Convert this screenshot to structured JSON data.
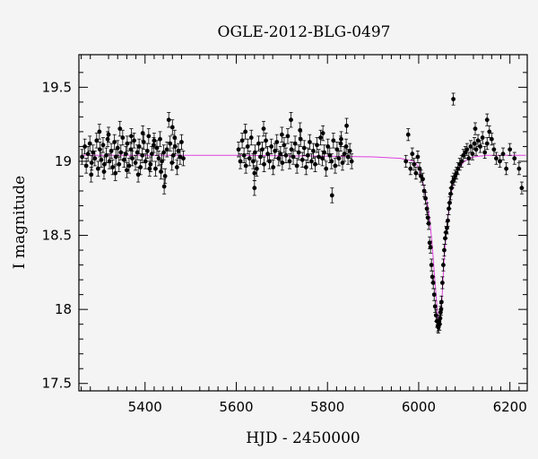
{
  "chart_data": {
    "type": "scatter",
    "title": "OGLE-2012-BLG-0497",
    "xlabel": "HJD - 2450000",
    "ylabel": "I magnitude",
    "xlim": [
      5255,
      6238
    ],
    "ylim": [
      19.72,
      17.45
    ],
    "y_inverted": true,
    "x_ticks": [
      5400,
      5600,
      5800,
      6000,
      6200
    ],
    "y_ticks": [
      17.5,
      18,
      18.5,
      19,
      19.5
    ],
    "y_tick_labels": [
      "17.5",
      "18",
      "18.5",
      "19",
      "19.5"
    ],
    "grid": false,
    "colors": {
      "points": "#000000",
      "model": "#e040e0",
      "background": "#f4f4f4"
    },
    "model": {
      "name": "",
      "baseline": 19.04,
      "x": [
        5260,
        5400,
        5600,
        5800,
        5900,
        5960,
        5990,
        6000,
        6010,
        6020,
        6025,
        6030,
        6035,
        6040,
        6043,
        6046,
        6048,
        6050,
        6053,
        6056,
        6060,
        6065,
        6070,
        6075,
        6080,
        6090,
        6100,
        6120,
        6150,
        6200,
        6235
      ],
      "y": [
        19.04,
        19.04,
        19.04,
        19.035,
        19.03,
        19.02,
        19.0,
        18.96,
        18.85,
        18.7,
        18.58,
        18.42,
        18.22,
        18.02,
        17.93,
        17.9,
        17.94,
        18.02,
        18.18,
        18.35,
        18.5,
        18.65,
        18.76,
        18.84,
        18.9,
        18.96,
        19.0,
        19.03,
        19.04,
        19.04,
        19.04
      ]
    },
    "series": [
      {
        "x": [
          5262,
          5268,
          5271,
          5275,
          5279,
          5283,
          5286,
          5290,
          5294,
          5297,
          5301,
          5304,
          5308,
          5311,
          5315,
          5318,
          5322,
          5326,
          5329,
          5333,
          5336,
          5340,
          5343,
          5347,
          5351,
          5354,
          5358,
          5361,
          5365,
          5369,
          5372,
          5376,
          5379,
          5383,
          5387,
          5390,
          5394,
          5397,
          5401,
          5405,
          5408,
          5412,
          5415,
          5419,
          5423,
          5426,
          5430,
          5433,
          5437,
          5441,
          5444,
          5448,
          5452,
          5455,
          5459,
          5462,
          5466,
          5470,
          5473,
          5477,
          5480,
          5484,
          5300,
          5320,
          5345,
          5370,
          5395,
          5420,
          5442,
          5465,
          5310,
          5335,
          5360,
          5385,
          5410,
          5435,
          5460,
          5282
        ],
        "y": [
          19.03,
          19.1,
          18.97,
          19.05,
          19.12,
          18.99,
          19.06,
          19.02,
          19.14,
          18.95,
          19.08,
          19.01,
          19.11,
          18.98,
          19.04,
          19.15,
          19.0,
          19.07,
          18.96,
          19.13,
          19.03,
          19.09,
          18.98,
          19.06,
          19.16,
          19.01,
          19.05,
          19.12,
          18.97,
          19.08,
          19.02,
          19.14,
          18.99,
          19.06,
          19.1,
          18.96,
          19.04,
          19.13,
          19.0,
          19.07,
          19.17,
          18.98,
          19.05,
          19.11,
          18.95,
          19.09,
          19.02,
          19.15,
          19.0,
          19.06,
          18.9,
          19.08,
          19.28,
          19.12,
          18.99,
          19.04,
          19.1,
          18.96,
          19.07,
          19.03,
          19.13,
          19.02,
          19.2,
          19.18,
          19.22,
          19.17,
          19.19,
          19.14,
          18.83,
          19.16,
          18.93,
          18.92,
          18.94,
          18.91,
          18.95,
          18.93,
          19.23,
          18.91
        ],
        "yerr": 0.05
      },
      {
        "x": [
          5605,
          5609,
          5613,
          5617,
          5621,
          5625,
          5629,
          5633,
          5637,
          5641,
          5645,
          5649,
          5653,
          5657,
          5661,
          5665,
          5669,
          5673,
          5677,
          5681,
          5685,
          5689,
          5693,
          5697,
          5701,
          5705,
          5709,
          5713,
          5717,
          5721,
          5725,
          5729,
          5733,
          5737,
          5741,
          5745,
          5749,
          5753,
          5757,
          5761,
          5765,
          5769,
          5773,
          5777,
          5781,
          5785,
          5789,
          5793,
          5797,
          5801,
          5805,
          5809,
          5813,
          5817,
          5821,
          5825,
          5829,
          5833,
          5837,
          5841,
          5845,
          5849,
          5853,
          5620,
          5660,
          5700,
          5740,
          5790,
          5830,
          5640,
          5720,
          5810,
          5640,
          5842
        ],
        "y": [
          19.08,
          19.0,
          19.14,
          19.04,
          18.97,
          19.1,
          19.02,
          19.16,
          19.0,
          19.06,
          18.95,
          19.12,
          19.03,
          19.08,
          18.98,
          19.14,
          19.05,
          19.0,
          19.1,
          18.96,
          19.07,
          19.13,
          19.02,
          19.05,
          18.99,
          19.11,
          19.04,
          19.17,
          19.0,
          19.08,
          19.03,
          19.12,
          18.97,
          19.06,
          19.15,
          19.01,
          19.09,
          18.96,
          19.04,
          19.13,
          19.0,
          19.07,
          18.98,
          19.11,
          19.03,
          19.16,
          19.02,
          19.06,
          18.95,
          19.1,
          19.04,
          19.0,
          19.14,
          18.97,
          19.08,
          19.02,
          19.12,
          18.99,
          19.05,
          19.1,
          19.03,
          19.07,
          19.0,
          19.2,
          19.22,
          19.18,
          19.21,
          19.19,
          19.15,
          18.82,
          19.28,
          18.77,
          18.92,
          19.24
        ],
        "yerr": 0.05
      },
      {
        "x": [
          5972,
          5977,
          5982,
          5986,
          5990,
          5994,
          5998,
          6002,
          6005,
          6009,
          6012,
          6015,
          6018,
          6020,
          6022,
          6024,
          6026,
          6028,
          6030,
          6032,
          6034,
          6036,
          6038,
          6040,
          6042,
          6043,
          6044,
          6045,
          6046,
          6047,
          6048,
          6049,
          6050,
          6052,
          6054,
          6056,
          6058,
          6060,
          6062,
          6064,
          6066,
          6068,
          6070,
          6072,
          6074,
          6077,
          6080,
          6083,
          6086,
          6090,
          6094,
          6098,
          6102,
          6106,
          6110,
          6114,
          6118,
          6122,
          6126,
          6130,
          6135,
          6140,
          6145,
          6150,
          6155,
          6160,
          6165,
          6170,
          6178,
          6185,
          6192,
          6200,
          6210,
          6220,
          6226,
          6124,
          6150,
          6076
        ],
        "y": [
          19.0,
          19.18,
          18.95,
          19.05,
          18.98,
          18.92,
          19.03,
          18.95,
          18.9,
          18.88,
          18.8,
          18.75,
          18.68,
          18.62,
          18.58,
          18.45,
          18.42,
          18.3,
          18.22,
          18.18,
          18.1,
          18.02,
          17.96,
          17.92,
          17.89,
          17.88,
          17.9,
          17.92,
          17.9,
          17.94,
          17.98,
          18.0,
          18.05,
          18.18,
          18.3,
          18.4,
          18.48,
          18.52,
          18.55,
          18.6,
          18.68,
          18.72,
          18.78,
          18.82,
          18.86,
          18.88,
          18.9,
          18.92,
          18.95,
          18.98,
          19.0,
          19.04,
          19.06,
          19.08,
          19.02,
          19.1,
          19.05,
          19.12,
          19.08,
          19.14,
          19.1,
          19.16,
          19.06,
          19.12,
          19.2,
          19.15,
          19.08,
          19.02,
          19.0,
          19.05,
          18.95,
          19.08,
          19.02,
          18.95,
          18.82,
          19.22,
          19.28,
          19.42
        ],
        "yerr": 0.04
      }
    ]
  }
}
